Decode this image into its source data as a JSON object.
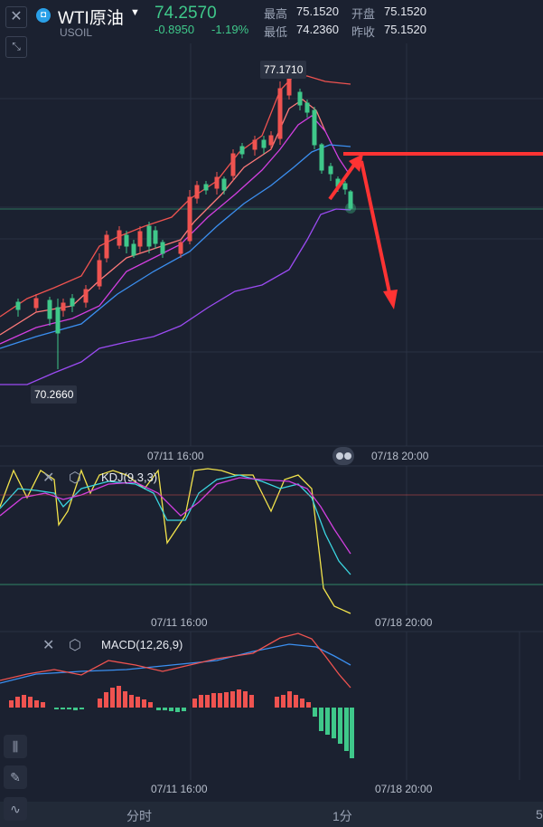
{
  "header": {
    "symbol_icon": "oil-icon",
    "symbol_name": "WTI原油",
    "symbol_code": "USOIL",
    "last_price": "74.2570",
    "change": "-0.8950",
    "change_pct": "-1.19%",
    "stats": [
      {
        "label": "最高",
        "value": "75.1520"
      },
      {
        "label": "开盘",
        "value": "75.1520"
      },
      {
        "label": "最低",
        "value": "74.2360"
      },
      {
        "label": "昨收",
        "value": "75.1520"
      }
    ]
  },
  "main_chart": {
    "high_callout": "77.1710",
    "low_callout": "70.2660",
    "time_labels": [
      "07/11 16:00",
      "07/18 20:00"
    ]
  },
  "kdj": {
    "label": "KDJ(9,3,3)",
    "time_labels": [
      "07/11 16:00",
      "07/18 20:00"
    ]
  },
  "macd": {
    "label": "MACD(12,26,9)",
    "time_labels": [
      "07/11 16:00",
      "07/18 20:00"
    ]
  },
  "bottom_tabs": [
    "分时",
    "1分",
    "5"
  ],
  "colors": {
    "up": "#ef5350",
    "down": "#3fc88a",
    "price_up_text": "#3fc88a",
    "annotation_arrow": "#ff3333",
    "background": "#1b2130"
  }
}
